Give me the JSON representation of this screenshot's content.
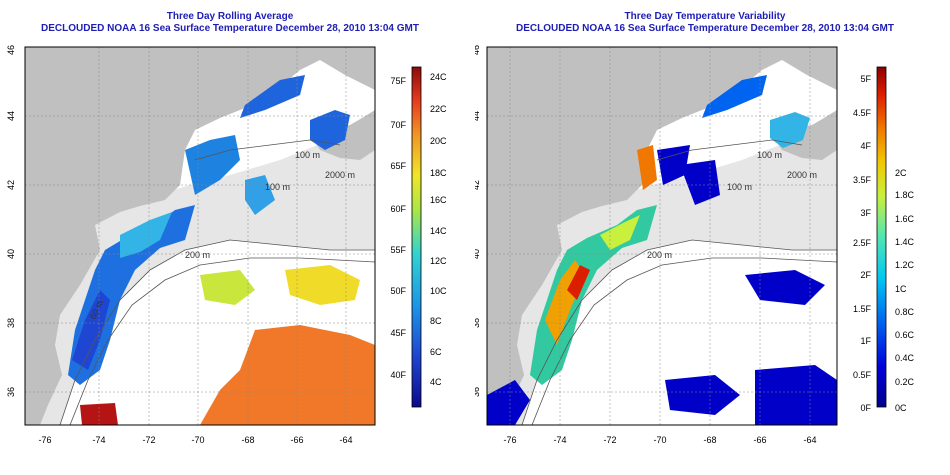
{
  "panels": [
    {
      "title": "Three Day Rolling Average",
      "subtitle": "DECLOUDED NOAA 16 Sea Surface Temperature December 28, 2010 13:04 GMT",
      "colorbar_f_labels": [
        "75F",
        "70F",
        "65F",
        "60F",
        "55F",
        "50F",
        "45F",
        "40F"
      ],
      "colorbar_c_labels": [
        "24C",
        "22C",
        "20C",
        "18C",
        "16C",
        "14C",
        "12C",
        "10C",
        "8C",
        "6C",
        "4C"
      ]
    },
    {
      "title": "Three Day Temperature Variability",
      "subtitle": "DECLOUDED NOAA 16 Sea Surface Temperature December 28, 2010 13:04 GMT",
      "colorbar_f_labels": [
        "5F",
        "4.5F",
        "4F",
        "3.5F",
        "3F",
        "2.5F",
        "2F",
        "1.5F",
        "1F",
        "0.5F",
        "0F"
      ],
      "colorbar_c_labels": [
        "2C",
        "1.8C",
        "1.6C",
        "1.4C",
        "1.2C",
        "1C",
        "0.8C",
        "0.6C",
        "0.4C",
        "0.2C",
        "0C"
      ]
    }
  ],
  "x_ticks": [
    "-76",
    "-74",
    "-72",
    "-70",
    "-68",
    "-66",
    "-64"
  ],
  "y_ticks": [
    "46",
    "44",
    "42",
    "40",
    "38",
    "36"
  ],
  "contour_labels": [
    "100 m",
    "2000 m",
    "100 m",
    "200 m",
    "200 m",
    "60 m"
  ],
  "colors": {
    "title": "#1e1eb4",
    "land": "#c0c0c0",
    "shelf": "#e6e6e6",
    "grid": "#888888"
  }
}
